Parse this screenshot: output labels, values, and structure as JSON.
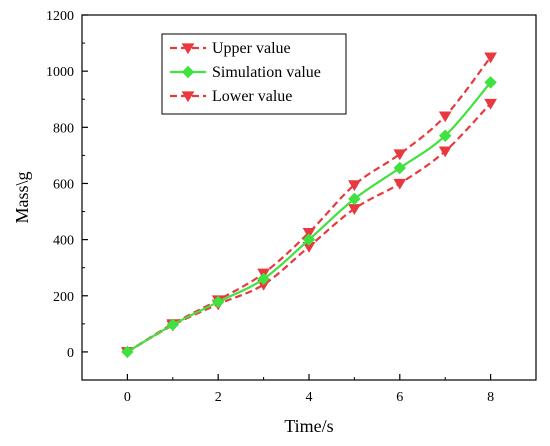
{
  "chart_data": {
    "type": "line",
    "title": "",
    "xlabel": "Time/s",
    "ylabel": "Mass\\g",
    "xlim": [
      -1,
      9
    ],
    "ylim": [
      -100,
      1200
    ],
    "x_ticks": [
      0,
      2,
      4,
      6,
      8
    ],
    "y_ticks": [
      0,
      200,
      400,
      600,
      800,
      1000,
      1200
    ],
    "grid": false,
    "legend_position": "top-left",
    "x": [
      0,
      1,
      2,
      3,
      4,
      5,
      6,
      7,
      8
    ],
    "series": [
      {
        "name": "Upper value",
        "values": [
          0,
          100,
          185,
          280,
          425,
          595,
          705,
          840,
          1050
        ],
        "color": "#e8393f",
        "line_style": "dashed",
        "marker": "triangle-down"
      },
      {
        "name": "Simulation value",
        "values": [
          0,
          97,
          178,
          260,
          400,
          545,
          655,
          770,
          960
        ],
        "color": "#3fe23f",
        "line_style": "solid",
        "marker": "diamond"
      },
      {
        "name": "Lower value",
        "values": [
          0,
          95,
          170,
          240,
          375,
          510,
          600,
          715,
          885
        ],
        "color": "#e8393f",
        "line_style": "dashed",
        "marker": "triangle-down"
      }
    ]
  }
}
